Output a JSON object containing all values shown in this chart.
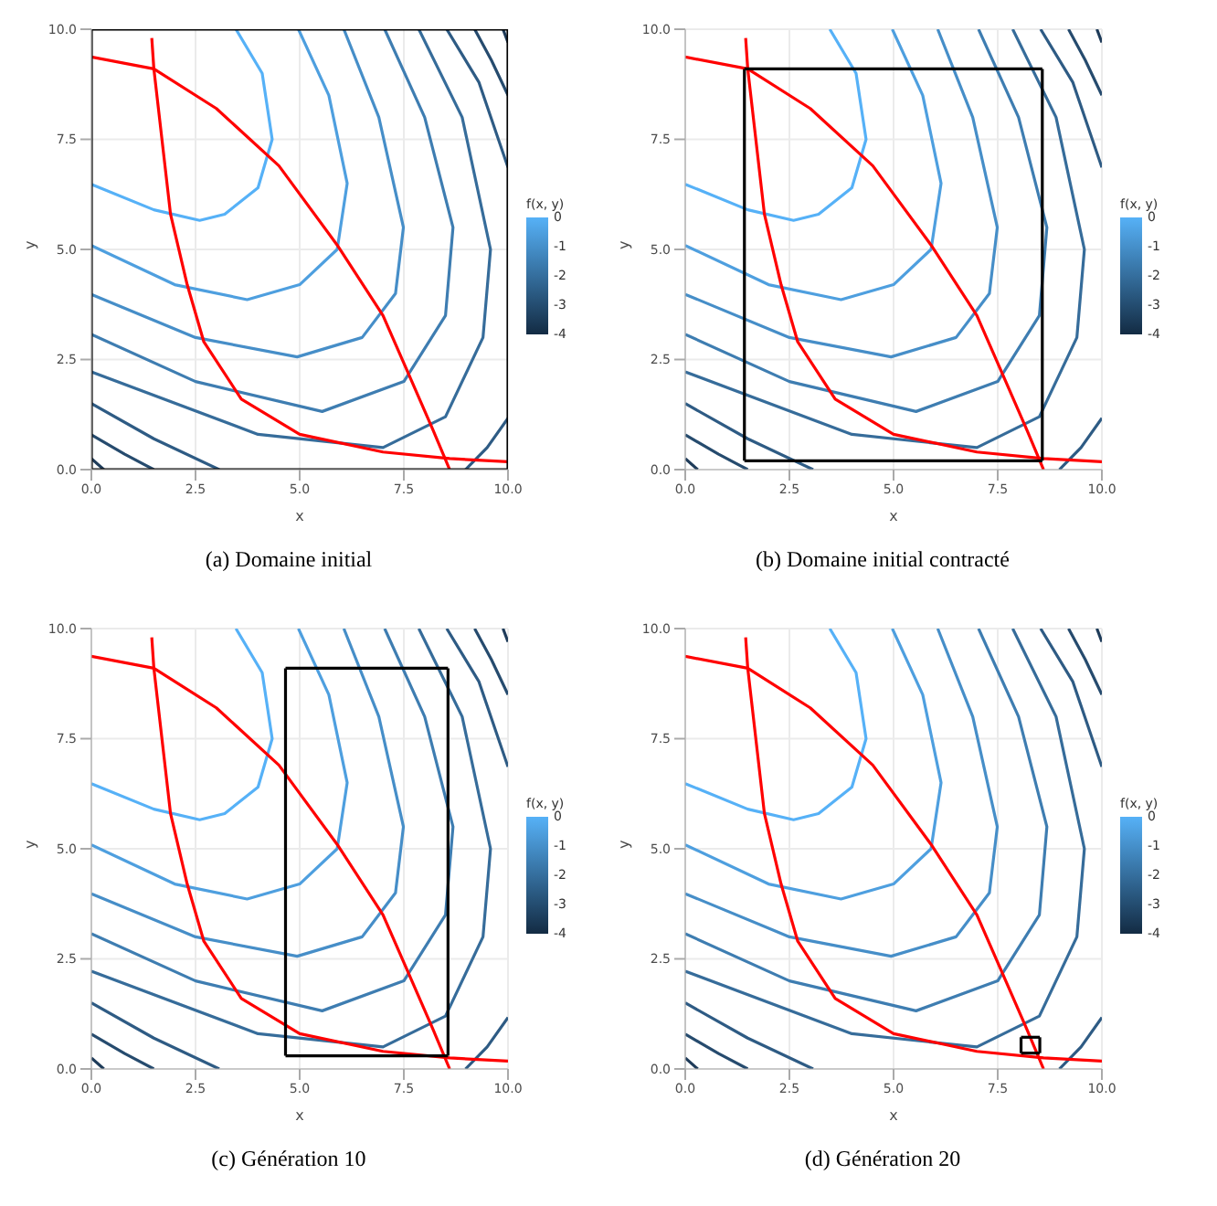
{
  "chart_data": [
    {
      "type": "line",
      "title": "(a) Domaine initial",
      "xlabel": "x",
      "ylabel": "y",
      "xlim": [
        0,
        10
      ],
      "ylim": [
        0,
        10
      ],
      "xticks": [
        {
          "value": 0,
          "label": "0.0"
        },
        {
          "value": 2.5,
          "label": "2.5"
        },
        {
          "value": 5,
          "label": "5.0"
        },
        {
          "value": 7.5,
          "label": "7.5"
        },
        {
          "value": 10,
          "label": "10.0"
        }
      ],
      "yticks": [
        {
          "value": 0,
          "label": "0.0"
        },
        {
          "value": 2.5,
          "label": "2.5"
        },
        {
          "value": 5,
          "label": "5.0"
        },
        {
          "value": 7.5,
          "label": "7.5"
        },
        {
          "value": 10,
          "label": "10.0"
        }
      ],
      "grid": true,
      "clabel": "f(x, y)",
      "clim": [
        -4,
        0
      ],
      "cticks": [
        0,
        -1,
        -2,
        -3,
        -4
      ],
      "series": [
        {
          "color": "#56b1f7",
          "x": [
            3.47,
            4.1,
            4.34,
            4.0,
            3.2,
            2.6,
            1.5,
            0
          ],
          "values": [
            10,
            9,
            7.5,
            6.4,
            5.8,
            5.66,
            5.9,
            6.48
          ]
        },
        {
          "color": "#4e9fdf",
          "x": [
            4.97,
            5.7,
            6.14,
            5.9,
            5.0,
            3.74,
            2.0,
            0
          ],
          "values": [
            10,
            8.5,
            6.5,
            5.0,
            4.2,
            3.86,
            4.2,
            5.09
          ]
        },
        {
          "color": "#468ec8",
          "x": [
            6.06,
            6.9,
            7.49,
            7.3,
            6.5,
            4.94,
            2.5,
            0
          ],
          "values": [
            10,
            8.0,
            5.5,
            4.0,
            3.0,
            2.56,
            3.0,
            3.98
          ]
        },
        {
          "color": "#3e7db1",
          "x": [
            7.04,
            8.0,
            8.68,
            8.5,
            7.5,
            5.54,
            2.5,
            0
          ],
          "values": [
            10,
            8,
            5.5,
            3.5,
            2.0,
            1.32,
            2.0,
            3.07
          ]
        },
        {
          "color": "#366c9a",
          "x": [
            7.86,
            8.9,
            9.58,
            9.4,
            8.5,
            7.0,
            4.0,
            0
          ],
          "values": [
            10,
            8,
            5,
            3,
            1.2,
            0.5,
            0.8,
            2.22
          ]
        },
        {
          "color": "#2e5b84",
          "x": [
            8.53,
            9.3,
            10
          ],
          "values": [
            10,
            8.8,
            6.86
          ]
        },
        {
          "color": "#2e5b84",
          "x": [
            10,
            9.5,
            8.98
          ],
          "values": [
            1.17,
            0.5,
            0
          ]
        },
        {
          "color": "#2e5b84",
          "x": [
            0,
            1.5,
            3.07
          ],
          "values": [
            1.5,
            0.7,
            0
          ]
        },
        {
          "color": "#264b6e",
          "x": [
            9.2,
            9.6,
            10
          ],
          "values": [
            10,
            9.3,
            8.5
          ]
        },
        {
          "color": "#264b6e",
          "x": [
            0,
            0.8,
            1.5
          ],
          "values": [
            0.79,
            0.35,
            0
          ]
        },
        {
          "color": "#1e3b59",
          "x": [
            9.88,
            10
          ],
          "values": [
            10,
            9.7
          ]
        },
        {
          "color": "#1e3b59",
          "x": [
            0,
            0.3
          ],
          "values": [
            0.25,
            0
          ]
        },
        {
          "color": "#ff0000",
          "x": [
            0,
            1.5,
            3.0,
            4.5,
            5.9,
            7,
            7.6,
            8.2,
            8.6
          ],
          "values": [
            9.37,
            9.1,
            8.2,
            6.9,
            5.1,
            3.5,
            2.2,
            0.9,
            0
          ]
        },
        {
          "color": "#ff0000",
          "x": [
            1.45,
            1.5,
            1.9,
            2.3,
            2.7,
            3.6,
            5,
            7,
            8.6,
            10
          ],
          "values": [
            9.8,
            9.1,
            5.8,
            4.2,
            2.9,
            1.6,
            0.8,
            0.4,
            0.25,
            0.18
          ]
        },
        {
          "color": "#000000",
          "x": [
            0,
            10
          ],
          "values": [
            0,
            0
          ]
        },
        {
          "color": "#000000",
          "x": [
            10,
            10
          ],
          "values": [
            0,
            10
          ]
        },
        {
          "color": "#000000",
          "x": [
            0,
            10
          ],
          "values": [
            10,
            10
          ]
        },
        {
          "color": "#000000",
          "x": [
            0,
            0
          ],
          "values": [
            0,
            10
          ]
        }
      ]
    },
    {
      "type": "line",
      "title": "(b) Domaine initial contracté",
      "xlabel": "x",
      "ylabel": "y",
      "xlim": [
        0,
        10
      ],
      "ylim": [
        0,
        10
      ],
      "xticks": [
        {
          "value": 0,
          "label": "0.0"
        },
        {
          "value": 2.5,
          "label": "2.5"
        },
        {
          "value": 5,
          "label": "5.0"
        },
        {
          "value": 7.5,
          "label": "7.5"
        },
        {
          "value": 10,
          "label": "10.0"
        }
      ],
      "yticks": [
        {
          "value": 0,
          "label": "0.0"
        },
        {
          "value": 2.5,
          "label": "2.5"
        },
        {
          "value": 5,
          "label": "5.0"
        },
        {
          "value": 7.5,
          "label": "7.5"
        },
        {
          "value": 10,
          "label": "10.0"
        }
      ],
      "grid": true,
      "clabel": "f(x, y)",
      "clim": [
        -4,
        0
      ],
      "cticks": [
        0,
        -1,
        -2,
        -3,
        -4
      ],
      "series": [
        {
          "color": "#56b1f7",
          "x": [
            3.47,
            4.1,
            4.34,
            4.0,
            3.2,
            2.6,
            1.5,
            0
          ],
          "values": [
            10,
            9,
            7.5,
            6.4,
            5.8,
            5.66,
            5.9,
            6.48
          ]
        },
        {
          "color": "#4e9fdf",
          "x": [
            4.97,
            5.7,
            6.14,
            5.9,
            5.0,
            3.74,
            2.0,
            0
          ],
          "values": [
            10,
            8.5,
            6.5,
            5.0,
            4.2,
            3.86,
            4.2,
            5.09
          ]
        },
        {
          "color": "#468ec8",
          "x": [
            6.06,
            6.9,
            7.49,
            7.3,
            6.5,
            4.94,
            2.5,
            0
          ],
          "values": [
            10,
            8.0,
            5.5,
            4.0,
            3.0,
            2.56,
            3.0,
            3.98
          ]
        },
        {
          "color": "#3e7db1",
          "x": [
            7.04,
            8.0,
            8.68,
            8.5,
            7.5,
            5.54,
            2.5,
            0
          ],
          "values": [
            10,
            8,
            5.5,
            3.5,
            2.0,
            1.32,
            2.0,
            3.07
          ]
        },
        {
          "color": "#366c9a",
          "x": [
            7.86,
            8.9,
            9.58,
            9.4,
            8.5,
            7.0,
            4.0,
            0
          ],
          "values": [
            10,
            8,
            5,
            3,
            1.2,
            0.5,
            0.8,
            2.22
          ]
        },
        {
          "color": "#2e5b84",
          "x": [
            8.53,
            9.3,
            10
          ],
          "values": [
            10,
            8.8,
            6.86
          ]
        },
        {
          "color": "#2e5b84",
          "x": [
            10,
            9.5,
            8.98
          ],
          "values": [
            1.17,
            0.5,
            0
          ]
        },
        {
          "color": "#2e5b84",
          "x": [
            0,
            1.5,
            3.07
          ],
          "values": [
            1.5,
            0.7,
            0
          ]
        },
        {
          "color": "#264b6e",
          "x": [
            9.2,
            9.6,
            10
          ],
          "values": [
            10,
            9.3,
            8.5
          ]
        },
        {
          "color": "#264b6e",
          "x": [
            0,
            0.8,
            1.5
          ],
          "values": [
            0.79,
            0.35,
            0
          ]
        },
        {
          "color": "#1e3b59",
          "x": [
            9.88,
            10
          ],
          "values": [
            10,
            9.7
          ]
        },
        {
          "color": "#1e3b59",
          "x": [
            0,
            0.3
          ],
          "values": [
            0.25,
            0
          ]
        },
        {
          "color": "#ff0000",
          "x": [
            0,
            1.5,
            3.0,
            4.5,
            5.9,
            7,
            7.6,
            8.2,
            8.6
          ],
          "values": [
            9.37,
            9.1,
            8.2,
            6.9,
            5.1,
            3.5,
            2.2,
            0.9,
            0
          ]
        },
        {
          "color": "#ff0000",
          "x": [
            1.45,
            1.5,
            1.9,
            2.3,
            2.7,
            3.6,
            5,
            7,
            8.6,
            10
          ],
          "values": [
            9.8,
            9.1,
            5.8,
            4.2,
            2.9,
            1.6,
            0.8,
            0.4,
            0.25,
            0.18
          ]
        },
        {
          "color": "#000000",
          "x": [
            1.42,
            8.57
          ],
          "values": [
            0.2,
            0.2
          ]
        },
        {
          "color": "#000000",
          "x": [
            8.57,
            8.57
          ],
          "values": [
            0.2,
            9.1
          ]
        },
        {
          "color": "#000000",
          "x": [
            1.42,
            8.57
          ],
          "values": [
            9.1,
            9.1
          ]
        },
        {
          "color": "#000000",
          "x": [
            1.42,
            1.42
          ],
          "values": [
            0.2,
            9.1
          ]
        }
      ]
    },
    {
      "type": "line",
      "title": "(c) Génération 10",
      "xlabel": "x",
      "ylabel": "y",
      "xlim": [
        0,
        10
      ],
      "ylim": [
        0,
        10
      ],
      "xticks": [
        {
          "value": 0,
          "label": "0.0"
        },
        {
          "value": 2.5,
          "label": "2.5"
        },
        {
          "value": 5,
          "label": "5.0"
        },
        {
          "value": 7.5,
          "label": "7.5"
        },
        {
          "value": 10,
          "label": "10.0"
        }
      ],
      "yticks": [
        {
          "value": 0,
          "label": "0.0"
        },
        {
          "value": 2.5,
          "label": "2.5"
        },
        {
          "value": 5,
          "label": "5.0"
        },
        {
          "value": 7.5,
          "label": "7.5"
        },
        {
          "value": 10,
          "label": "10.0"
        }
      ],
      "grid": true,
      "clabel": "f(x, y)",
      "clim": [
        -4,
        0
      ],
      "cticks": [
        0,
        -1,
        -2,
        -3,
        -4
      ],
      "series": [
        {
          "color": "#56b1f7",
          "x": [
            3.47,
            4.1,
            4.34,
            4.0,
            3.2,
            2.6,
            1.5,
            0
          ],
          "values": [
            10,
            9,
            7.5,
            6.4,
            5.8,
            5.66,
            5.9,
            6.48
          ]
        },
        {
          "color": "#4e9fdf",
          "x": [
            4.97,
            5.7,
            6.14,
            5.9,
            5.0,
            3.74,
            2.0,
            0
          ],
          "values": [
            10,
            8.5,
            6.5,
            5.0,
            4.2,
            3.86,
            4.2,
            5.09
          ]
        },
        {
          "color": "#468ec8",
          "x": [
            6.06,
            6.9,
            7.49,
            7.3,
            6.5,
            4.94,
            2.5,
            0
          ],
          "values": [
            10,
            8.0,
            5.5,
            4.0,
            3.0,
            2.56,
            3.0,
            3.98
          ]
        },
        {
          "color": "#3e7db1",
          "x": [
            7.04,
            8.0,
            8.68,
            8.5,
            7.5,
            5.54,
            2.5,
            0
          ],
          "values": [
            10,
            8,
            5.5,
            3.5,
            2.0,
            1.32,
            2.0,
            3.07
          ]
        },
        {
          "color": "#366c9a",
          "x": [
            7.86,
            8.9,
            9.58,
            9.4,
            8.5,
            7.0,
            4.0,
            0
          ],
          "values": [
            10,
            8,
            5,
            3,
            1.2,
            0.5,
            0.8,
            2.22
          ]
        },
        {
          "color": "#2e5b84",
          "x": [
            8.53,
            9.3,
            10
          ],
          "values": [
            10,
            8.8,
            6.86
          ]
        },
        {
          "color": "#2e5b84",
          "x": [
            10,
            9.5,
            8.98
          ],
          "values": [
            1.17,
            0.5,
            0
          ]
        },
        {
          "color": "#2e5b84",
          "x": [
            0,
            1.5,
            3.07
          ],
          "values": [
            1.5,
            0.7,
            0
          ]
        },
        {
          "color": "#264b6e",
          "x": [
            9.2,
            9.6,
            10
          ],
          "values": [
            10,
            9.3,
            8.5
          ]
        },
        {
          "color": "#264b6e",
          "x": [
            0,
            0.8,
            1.5
          ],
          "values": [
            0.79,
            0.35,
            0
          ]
        },
        {
          "color": "#1e3b59",
          "x": [
            9.88,
            10
          ],
          "values": [
            10,
            9.7
          ]
        },
        {
          "color": "#1e3b59",
          "x": [
            0,
            0.3
          ],
          "values": [
            0.25,
            0
          ]
        },
        {
          "color": "#ff0000",
          "x": [
            0,
            1.5,
            3.0,
            4.5,
            5.9,
            7,
            7.6,
            8.2,
            8.6
          ],
          "values": [
            9.37,
            9.1,
            8.2,
            6.9,
            5.1,
            3.5,
            2.2,
            0.9,
            0
          ]
        },
        {
          "color": "#ff0000",
          "x": [
            1.45,
            1.5,
            1.9,
            2.3,
            2.7,
            3.6,
            5,
            7,
            8.6,
            10
          ],
          "values": [
            9.8,
            9.1,
            5.8,
            4.2,
            2.9,
            1.6,
            0.8,
            0.4,
            0.25,
            0.18
          ]
        },
        {
          "color": "#000000",
          "x": [
            4.66,
            8.56
          ],
          "values": [
            0.3,
            0.3
          ]
        },
        {
          "color": "#000000",
          "x": [
            8.56,
            8.56
          ],
          "values": [
            0.3,
            9.1
          ]
        },
        {
          "color": "#000000",
          "x": [
            4.66,
            8.56
          ],
          "values": [
            9.1,
            9.1
          ]
        },
        {
          "color": "#000000",
          "x": [
            4.66,
            4.66
          ],
          "values": [
            0.3,
            9.1
          ]
        }
      ]
    },
    {
      "type": "line",
      "title": "(d) Génération 20",
      "xlabel": "x",
      "ylabel": "y",
      "xlim": [
        0,
        10
      ],
      "ylim": [
        0,
        10
      ],
      "xticks": [
        {
          "value": 0,
          "label": "0.0"
        },
        {
          "value": 2.5,
          "label": "2.5"
        },
        {
          "value": 5,
          "label": "5.0"
        },
        {
          "value": 7.5,
          "label": "7.5"
        },
        {
          "value": 10,
          "label": "10.0"
        }
      ],
      "yticks": [
        {
          "value": 0,
          "label": "0.0"
        },
        {
          "value": 2.5,
          "label": "2.5"
        },
        {
          "value": 5,
          "label": "5.0"
        },
        {
          "value": 7.5,
          "label": "7.5"
        },
        {
          "value": 10,
          "label": "10.0"
        }
      ],
      "grid": true,
      "clabel": "f(x, y)",
      "clim": [
        -4,
        0
      ],
      "cticks": [
        0,
        -1,
        -2,
        -3,
        -4
      ],
      "series": [
        {
          "color": "#56b1f7",
          "x": [
            3.47,
            4.1,
            4.34,
            4.0,
            3.2,
            2.6,
            1.5,
            0
          ],
          "values": [
            10,
            9,
            7.5,
            6.4,
            5.8,
            5.66,
            5.9,
            6.48
          ]
        },
        {
          "color": "#4e9fdf",
          "x": [
            4.97,
            5.7,
            6.14,
            5.9,
            5.0,
            3.74,
            2.0,
            0
          ],
          "values": [
            10,
            8.5,
            6.5,
            5.0,
            4.2,
            3.86,
            4.2,
            5.09
          ]
        },
        {
          "color": "#468ec8",
          "x": [
            6.06,
            6.9,
            7.49,
            7.3,
            6.5,
            4.94,
            2.5,
            0
          ],
          "values": [
            10,
            8.0,
            5.5,
            4.0,
            3.0,
            2.56,
            3.0,
            3.98
          ]
        },
        {
          "color": "#3e7db1",
          "x": [
            7.04,
            8.0,
            8.68,
            8.5,
            7.5,
            5.54,
            2.5,
            0
          ],
          "values": [
            10,
            8,
            5.5,
            3.5,
            2.0,
            1.32,
            2.0,
            3.07
          ]
        },
        {
          "color": "#366c9a",
          "x": [
            7.86,
            8.9,
            9.58,
            9.4,
            8.5,
            7.0,
            4.0,
            0
          ],
          "values": [
            10,
            8,
            5,
            3,
            1.2,
            0.5,
            0.8,
            2.22
          ]
        },
        {
          "color": "#2e5b84",
          "x": [
            8.53,
            9.3,
            10
          ],
          "values": [
            10,
            8.8,
            6.86
          ]
        },
        {
          "color": "#2e5b84",
          "x": [
            10,
            9.5,
            8.98
          ],
          "values": [
            1.17,
            0.5,
            0
          ]
        },
        {
          "color": "#2e5b84",
          "x": [
            0,
            1.5,
            3.07
          ],
          "values": [
            1.5,
            0.7,
            0
          ]
        },
        {
          "color": "#264b6e",
          "x": [
            9.2,
            9.6,
            10
          ],
          "values": [
            10,
            9.3,
            8.5
          ]
        },
        {
          "color": "#264b6e",
          "x": [
            0,
            0.8,
            1.5
          ],
          "values": [
            0.79,
            0.35,
            0
          ]
        },
        {
          "color": "#1e3b59",
          "x": [
            9.88,
            10
          ],
          "values": [
            10,
            9.7
          ]
        },
        {
          "color": "#1e3b59",
          "x": [
            0,
            0.3
          ],
          "values": [
            0.25,
            0
          ]
        },
        {
          "color": "#ff0000",
          "x": [
            0,
            1.5,
            3.0,
            4.5,
            5.9,
            7,
            7.6,
            8.2,
            8.6
          ],
          "values": [
            9.37,
            9.1,
            8.2,
            6.9,
            5.1,
            3.5,
            2.2,
            0.9,
            0
          ]
        },
        {
          "color": "#ff0000",
          "x": [
            1.45,
            1.5,
            1.9,
            2.3,
            2.7,
            3.6,
            5,
            7,
            8.6,
            10
          ],
          "values": [
            9.8,
            9.1,
            5.8,
            4.2,
            2.9,
            1.6,
            0.8,
            0.4,
            0.25,
            0.18
          ]
        },
        {
          "color": "#000000",
          "x": [
            8.06,
            8.51
          ],
          "values": [
            0.36,
            0.36
          ]
        },
        {
          "color": "#000000",
          "x": [
            8.51,
            8.51
          ],
          "values": [
            0.36,
            0.72
          ]
        },
        {
          "color": "#000000",
          "x": [
            8.06,
            8.51
          ],
          "values": [
            0.72,
            0.72
          ]
        },
        {
          "color": "#000000",
          "x": [
            8.06,
            8.06
          ],
          "values": [
            0.36,
            0.72
          ]
        }
      ]
    }
  ]
}
